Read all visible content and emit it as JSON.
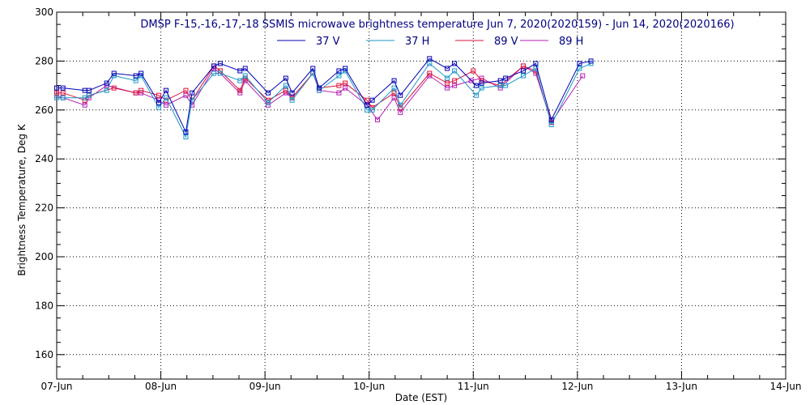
{
  "chart_data": {
    "type": "line",
    "title": "DMSP F-15,-16,-17,-18 SSMIS microwave brightness temperature Jun  7, 2020(2020159) - Jun 14, 2020(2020166)",
    "xlabel": "Date (EST)",
    "ylabel": "Brightness Temperature, Deg K",
    "ylim": [
      150,
      300
    ],
    "xlim": [
      0,
      7
    ],
    "yticks": [
      160,
      180,
      200,
      220,
      240,
      260,
      280,
      300
    ],
    "xtick_labels": [
      "07-Jun",
      "08-Jun",
      "09-Jun",
      "10-Jun",
      "11-Jun",
      "12-Jun",
      "13-Jun",
      "14-Jun"
    ],
    "grid": true,
    "legend_position": "top-center",
    "series": [
      {
        "name": "37 V",
        "color": "#0000b4",
        "x": [
          0.0,
          0.06,
          0.27,
          0.31,
          0.48,
          0.55,
          0.76,
          0.81,
          0.98,
          1.05,
          1.24,
          1.3,
          1.51,
          1.57,
          1.76,
          1.81,
          2.03,
          2.2,
          2.26,
          2.46,
          2.52,
          2.71,
          2.77,
          2.98,
          3.03,
          3.24,
          3.3,
          3.58,
          3.75,
          3.82,
          4.03,
          4.08,
          4.26,
          4.31,
          4.48,
          4.6,
          4.75,
          5.02,
          5.13
        ],
        "y": [
          269,
          269,
          268,
          268,
          271,
          275,
          274,
          275,
          263,
          268,
          251,
          267,
          278,
          279,
          276,
          277,
          267,
          273,
          267,
          277,
          269,
          276,
          277,
          262,
          264,
          272,
          266,
          281,
          277,
          279,
          270,
          271,
          272,
          273,
          276,
          279,
          256,
          279,
          280
        ]
      },
      {
        "name": "37 H",
        "color": "#1e96c8",
        "x": [
          0.0,
          0.06,
          0.27,
          0.31,
          0.48,
          0.55,
          0.76,
          0.81,
          0.98,
          1.05,
          1.24,
          1.3,
          1.51,
          1.57,
          1.76,
          1.81,
          2.03,
          2.2,
          2.26,
          2.46,
          2.52,
          2.71,
          2.77,
          2.98,
          3.03,
          3.24,
          3.3,
          3.58,
          3.75,
          3.82,
          4.03,
          4.08,
          4.26,
          4.31,
          4.48,
          4.6,
          4.75,
          5.02,
          5.13
        ],
        "y": [
          265,
          265,
          265,
          266,
          268,
          274,
          272,
          274,
          261,
          265,
          249,
          264,
          275,
          275,
          272,
          274,
          263,
          270,
          264,
          275,
          268,
          274,
          276,
          260,
          260,
          269,
          262,
          279,
          273,
          276,
          266,
          269,
          270,
          270,
          274,
          277,
          254,
          277,
          279
        ]
      },
      {
        "name": "89 V",
        "color": "#dc143c",
        "x": [
          0.0,
          0.06,
          0.27,
          0.31,
          0.55,
          0.76,
          0.81,
          0.98,
          1.05,
          1.24,
          1.3,
          1.51,
          1.57,
          1.76,
          1.81,
          2.03,
          2.2,
          2.26,
          2.46,
          2.52,
          2.71,
          2.77,
          2.98,
          3.03,
          3.24,
          3.3,
          3.58,
          3.75,
          3.82,
          4.0,
          4.08,
          4.26,
          4.48,
          4.6,
          4.75
        ],
        "y": [
          267,
          267,
          264,
          266,
          269,
          267,
          268,
          266,
          264,
          268,
          264,
          278,
          276,
          268,
          273,
          264,
          268,
          265,
          275,
          269,
          270,
          271,
          264,
          261,
          267,
          261,
          275,
          271,
          272,
          276,
          272,
          270,
          278,
          276,
          255
        ]
      },
      {
        "name": "89 H",
        "color": "#b41eb4",
        "x": [
          0.0,
          0.06,
          0.27,
          0.31,
          0.48,
          0.76,
          0.81,
          0.98,
          1.05,
          1.24,
          1.3,
          1.51,
          1.57,
          1.76,
          1.81,
          2.03,
          2.2,
          2.26,
          2.46,
          2.52,
          2.71,
          2.77,
          2.98,
          3.08,
          3.24,
          3.3,
          3.58,
          3.75,
          3.82,
          3.98,
          4.08,
          4.26,
          4.48,
          4.6,
          4.75,
          5.05
        ],
        "y": [
          266,
          265,
          262,
          265,
          270,
          267,
          267,
          264,
          262,
          266,
          262,
          277,
          275,
          267,
          272,
          262,
          267,
          265,
          275,
          268,
          267,
          269,
          262,
          256,
          265,
          259,
          274,
          269,
          270,
          272,
          273,
          269,
          278,
          275,
          255,
          274
        ]
      }
    ]
  }
}
